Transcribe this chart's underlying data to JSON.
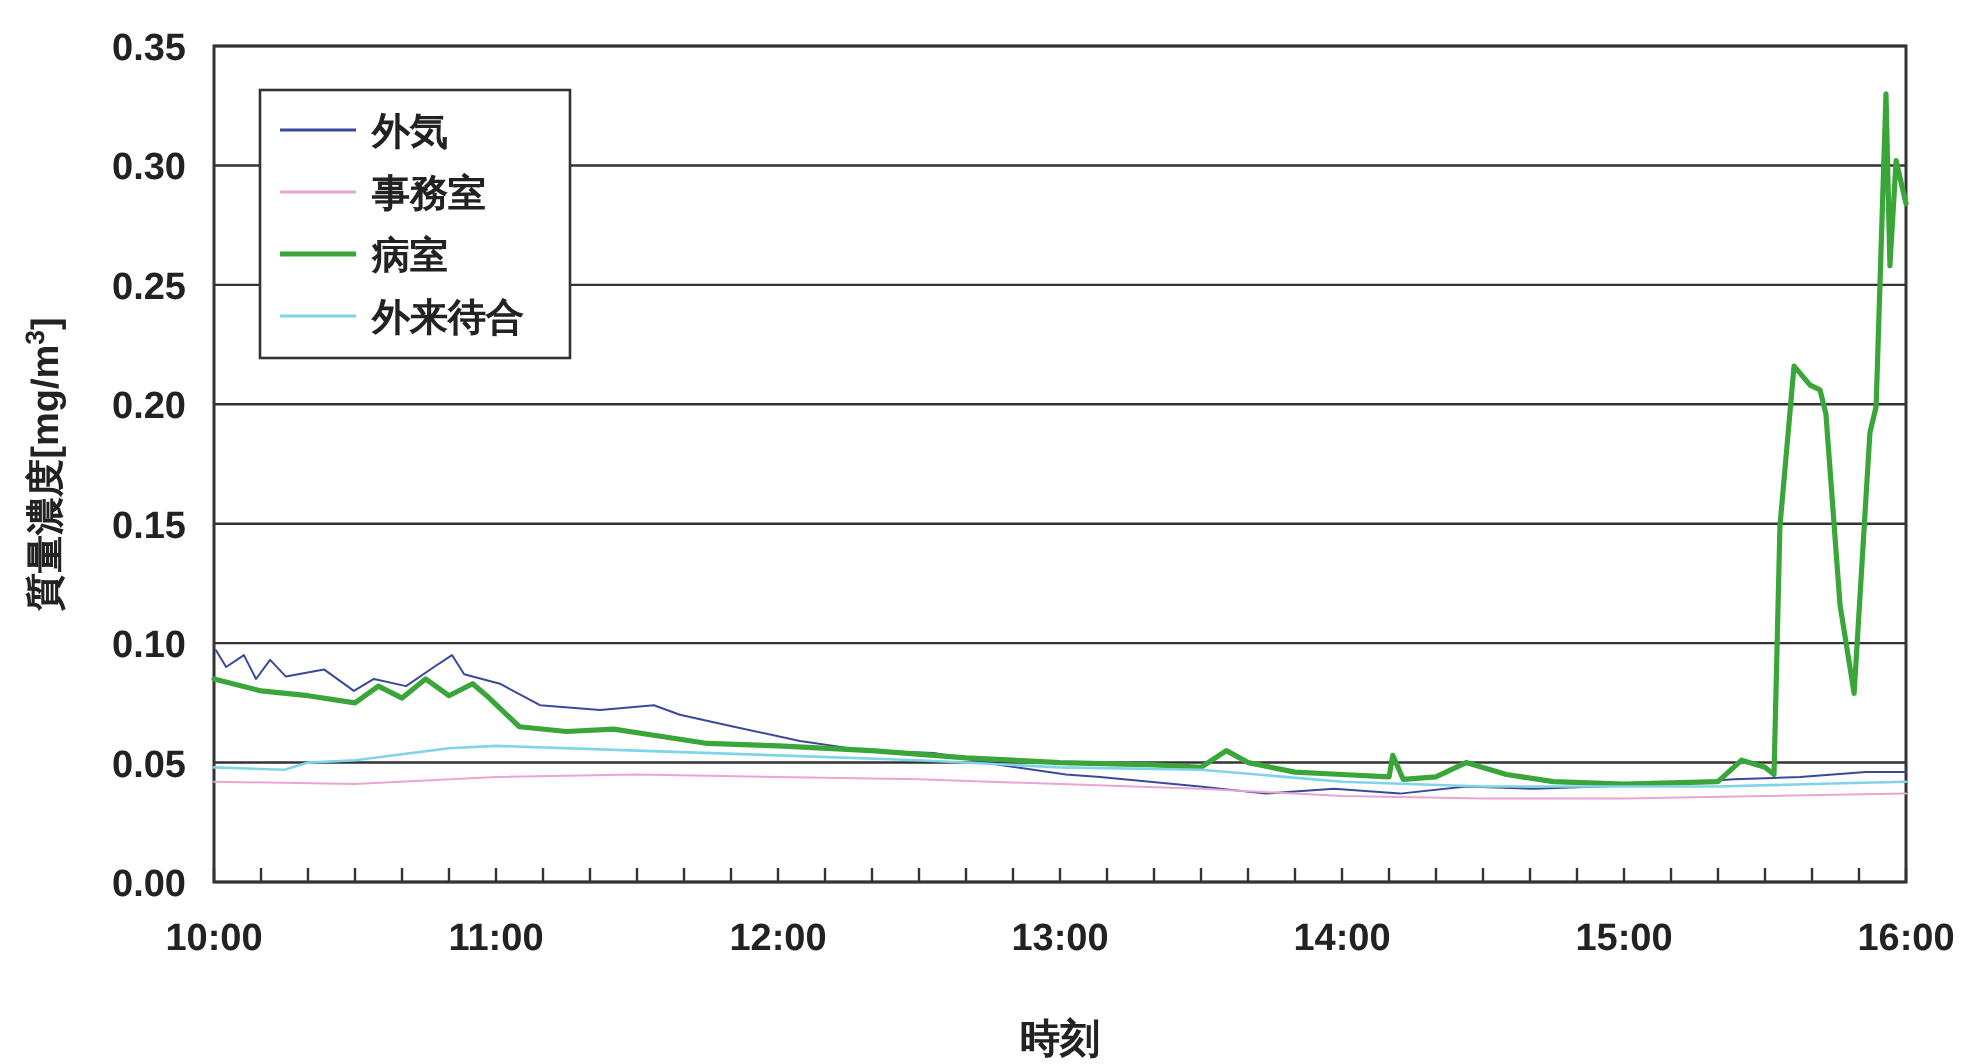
{
  "chart_data": {
    "type": "line",
    "xlabel": "時刻",
    "ylabel": "質量濃度[mg/m$^{3}$]",
    "xlim": [
      10,
      16
    ],
    "ylim": [
      0,
      0.35
    ],
    "xticks": [
      {
        "value": 10,
        "label": "10:00"
      },
      {
        "value": 10.1667,
        "label": null
      },
      {
        "value": 10.3333,
        "label": null
      },
      {
        "value": 10.5,
        "label": null
      },
      {
        "value": 10.6667,
        "label": null
      },
      {
        "value": 10.8333,
        "label": null
      },
      {
        "value": 11,
        "label": "11:00"
      },
      {
        "value": 11.1667,
        "label": null
      },
      {
        "value": 11.3333,
        "label": null
      },
      {
        "value": 11.5,
        "label": null
      },
      {
        "value": 11.6667,
        "label": null
      },
      {
        "value": 11.8333,
        "label": null
      },
      {
        "value": 12,
        "label": "12:00"
      },
      {
        "value": 12.1667,
        "label": null
      },
      {
        "value": 12.3333,
        "label": null
      },
      {
        "value": 12.5,
        "label": null
      },
      {
        "value": 12.6667,
        "label": null
      },
      {
        "value": 12.8333,
        "label": null
      },
      {
        "value": 13,
        "label": "13:00"
      },
      {
        "value": 13.1667,
        "label": null
      },
      {
        "value": 13.3333,
        "label": null
      },
      {
        "value": 13.5,
        "label": null
      },
      {
        "value": 13.6667,
        "label": null
      },
      {
        "value": 13.8333,
        "label": null
      },
      {
        "value": 14,
        "label": "14:00"
      },
      {
        "value": 14.1667,
        "label": null
      },
      {
        "value": 14.3333,
        "label": null
      },
      {
        "value": 14.5,
        "label": null
      },
      {
        "value": 14.6667,
        "label": null
      },
      {
        "value": 14.8333,
        "label": null
      },
      {
        "value": 15,
        "label": "15:00"
      },
      {
        "value": 15.1667,
        "label": null
      },
      {
        "value": 15.3333,
        "label": null
      },
      {
        "value": 15.5,
        "label": null
      },
      {
        "value": 15.6667,
        "label": null
      },
      {
        "value": 15.8333,
        "label": null
      },
      {
        "value": 16,
        "label": "16:00"
      }
    ],
    "yticks": [
      {
        "value": 0,
        "label": "0.00"
      },
      {
        "value": 0.05,
        "label": "0.05"
      },
      {
        "value": 0.1,
        "label": "0.10"
      },
      {
        "value": 0.15,
        "label": "0.15"
      },
      {
        "value": 0.2,
        "label": "0.20"
      },
      {
        "value": 0.25,
        "label": "0.25"
      },
      {
        "value": 0.3,
        "label": "0.30"
      },
      {
        "value": 0.35,
        "label": "0.35"
      }
    ],
    "grid": "y",
    "legend": "top left",
    "marker": "none",
    "line_style": "solid",
    "series": [
      {
        "name": "外気",
        "color": "#3a4a9a",
        "x": [
          10.007,
          10.043,
          10.106,
          10.149,
          10.199,
          10.255,
          10.39,
          10.496,
          10.567,
          10.681,
          10.78,
          10.844,
          10.887,
          11.014,
          11.156,
          11.369,
          11.56,
          11.652,
          11.844,
          12.078,
          12.312,
          12.553,
          12.787,
          13.021,
          13.142,
          13.496,
          13.73,
          13.972,
          14.206,
          14.44,
          14.681,
          14.915,
          15.149,
          15.39,
          15.624,
          15.858,
          16.0
        ],
        "values": [
          0.097,
          0.09,
          0.095,
          0.085,
          0.093,
          0.086,
          0.089,
          0.08,
          0.085,
          0.082,
          0.09,
          0.095,
          0.087,
          0.083,
          0.074,
          0.072,
          0.074,
          0.07,
          0.065,
          0.059,
          0.055,
          0.054,
          0.049,
          0.045,
          0.044,
          0.04,
          0.037,
          0.039,
          0.037,
          0.04,
          0.039,
          0.04,
          0.041,
          0.043,
          0.044,
          0.046,
          0.046
        ]
      },
      {
        "name": "事務室",
        "color": "#e8a6d0",
        "x": [
          10.0,
          10.5,
          11.0,
          11.5,
          12.0,
          12.5,
          13.0,
          13.5,
          14.0,
          14.5,
          15.0,
          15.5,
          16.0
        ],
        "values": [
          0.042,
          0.041,
          0.044,
          0.045,
          0.044,
          0.043,
          0.041,
          0.039,
          0.036,
          0.035,
          0.035,
          0.036,
          0.037
        ]
      },
      {
        "name": "病室",
        "color": "#3aa63a",
        "x": [
          10.0,
          10.167,
          10.333,
          10.5,
          10.583,
          10.667,
          10.75,
          10.833,
          10.917,
          10.967,
          11.083,
          11.25,
          11.417,
          11.583,
          11.75,
          12.0,
          12.333,
          12.667,
          13.0,
          13.333,
          13.5,
          13.59,
          13.667,
          13.833,
          14.0,
          14.167,
          14.18,
          14.217,
          14.333,
          14.44,
          14.583,
          14.75,
          15.0,
          15.333,
          15.417,
          15.5,
          15.532,
          15.553,
          15.603,
          15.66,
          15.695,
          15.716,
          15.766,
          15.816,
          15.872,
          15.894,
          15.929,
          15.943,
          15.965,
          16.0
        ],
        "values": [
          0.085,
          0.08,
          0.078,
          0.075,
          0.082,
          0.077,
          0.085,
          0.078,
          0.083,
          0.078,
          0.065,
          0.063,
          0.064,
          0.061,
          0.058,
          0.057,
          0.055,
          0.052,
          0.05,
          0.049,
          0.048,
          0.055,
          0.05,
          0.046,
          0.045,
          0.044,
          0.053,
          0.043,
          0.044,
          0.05,
          0.045,
          0.042,
          0.041,
          0.042,
          0.051,
          0.048,
          0.045,
          0.149,
          0.216,
          0.208,
          0.206,
          0.196,
          0.116,
          0.079,
          0.188,
          0.199,
          0.33,
          0.258,
          0.302,
          0.284
        ]
      },
      {
        "name": "外来待合",
        "color": "#7fd4e8",
        "x": [
          10.0,
          10.25,
          10.333,
          10.5,
          10.833,
          11.0,
          11.5,
          12.0,
          12.5,
          13.0,
          13.5,
          14.0,
          14.5,
          15.0,
          15.333,
          15.667,
          16.0
        ],
        "values": [
          0.048,
          0.047,
          0.05,
          0.051,
          0.056,
          0.057,
          0.055,
          0.053,
          0.051,
          0.048,
          0.047,
          0.042,
          0.04,
          0.04,
          0.04,
          0.041,
          0.042
        ]
      }
    ]
  }
}
